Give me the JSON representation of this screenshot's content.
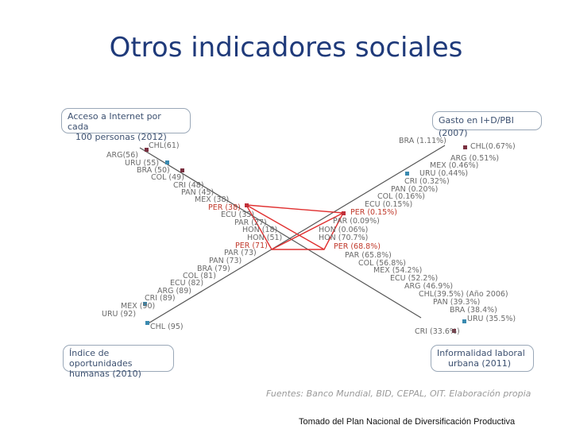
{
  "title": "Otros indicadores sociales",
  "boxes": {
    "internet": [
      "Acceso a Internet por cada",
      "100 personas (2012)"
    ],
    "gasto": "Gasto en I+D/PBI (2007)",
    "idh": [
      "Índice de oportunidades",
      "humanas (2010)"
    ],
    "informalidad": [
      "Informalidad laboral",
      "urbana (2011)"
    ]
  },
  "axes": {
    "internet": [
      "CHL(61)",
      "ARG(56)",
      "URU (55)",
      "BRA (50)",
      "COL (49)",
      "CRI (48)",
      "PAN (45)",
      "MEX (38)",
      "PER (38)",
      "ECU (35)",
      "PAR (27)",
      "HON (18)"
    ],
    "idh": [
      "HON (51)",
      "PER (71)",
      "PAR (73)",
      "PAN (73)",
      "BRA (79)",
      "COL (81)",
      "ECU (82)",
      "ARG (89)",
      "CRI (89)",
      "MEX (90)",
      "URU (92)",
      "CHL (95)"
    ],
    "gasto": [
      "BRA (1.11%)",
      "CHL(0.67%)",
      "ARG (0.51%)",
      "MEX (0.46%)",
      "URU (0.44%)",
      "CRI (0.32%)",
      "PAN (0.20%)",
      "COL (0.16%)",
      "ECU (0.15%)",
      "PER (0.15%)",
      "PAR (0.09%)",
      "HON (0.06%)"
    ],
    "informalidad": [
      "HON (70.7%)",
      "PER (68.8%)",
      "PAR (65.8%)",
      "COL (56.8%)",
      "MEX (54.2%)",
      "ECU (52.2%)",
      "ARG (46.9%)",
      "CHL(39.5%) (Año 2006)",
      "PAN (39.3%)",
      "BRA (38.4%)",
      "URU (35.5%)",
      "CRI (33.6%)"
    ]
  },
  "sources": "Fuentes: Banco Mundial, BID, CEPAL, OIT. Elaboración propia",
  "footnote": "Tomado del Plan Nacional de Diversificación Productiva",
  "colors": {
    "title": "#1f3a7a",
    "highlight": "#e03030",
    "axis": "#555555"
  }
}
